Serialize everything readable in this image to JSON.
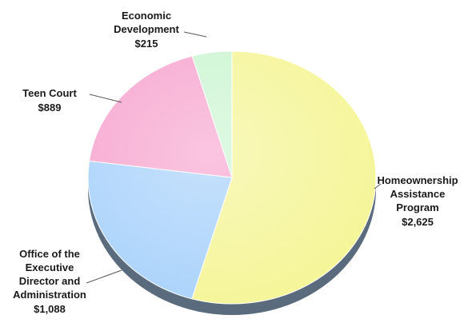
{
  "chart_data": {
    "type": "pie",
    "title": "",
    "unit_prefix": "$",
    "slices": [
      {
        "label": "Homeownership Assistance Program",
        "value": 2625,
        "value_label": "$2,625",
        "color": "#f5f598"
      },
      {
        "label": "Office of the Executive Director and Administration",
        "value": 1088,
        "value_label": "$1,088",
        "color": "#a9d2fb"
      },
      {
        "label": "Teen Court",
        "value": 889,
        "value_label": "$889",
        "color": "#f7a6cf"
      },
      {
        "label": "Economic Development",
        "value": 215,
        "value_label": "$215",
        "color": "#ccf5d2"
      }
    ],
    "start_angle": "top",
    "direction": "clockwise",
    "legend": "none",
    "label_style": "outside with leader lines"
  }
}
